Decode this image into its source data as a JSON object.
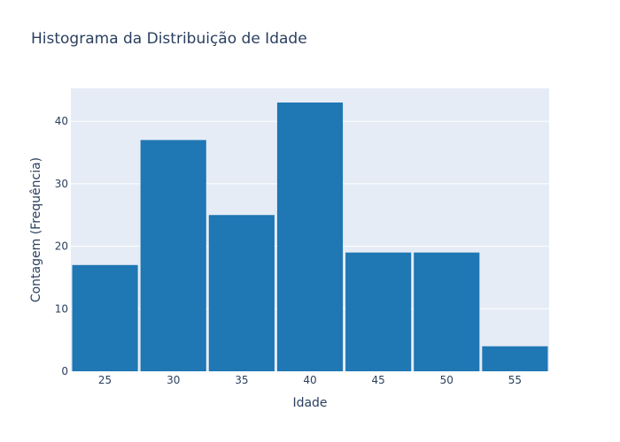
{
  "chart_data": {
    "type": "bar",
    "title": "Histograma da Distribuição de Idade",
    "xlabel": "Idade",
    "ylabel": "Contagem (Frequência)",
    "categories": [
      "25",
      "30",
      "35",
      "40",
      "45",
      "50",
      "55"
    ],
    "bin_edges": [
      22.5,
      27.5,
      32.5,
      37.5,
      42.5,
      47.5,
      52.5,
      57.5
    ],
    "values": [
      17,
      37,
      25,
      43,
      19,
      19,
      4
    ],
    "xlim": [
      22.5,
      57.5
    ],
    "ylim": [
      0,
      45.26
    ],
    "yticks": [
      0,
      10,
      20,
      30,
      40
    ],
    "xticks": [
      25,
      30,
      35,
      40,
      45,
      50,
      55
    ],
    "grid": true,
    "colors": {
      "bar": "#1f77b4",
      "plot_bg": "#e5ecf6",
      "grid": "#ffffff",
      "text": "#2a3f5f"
    }
  }
}
